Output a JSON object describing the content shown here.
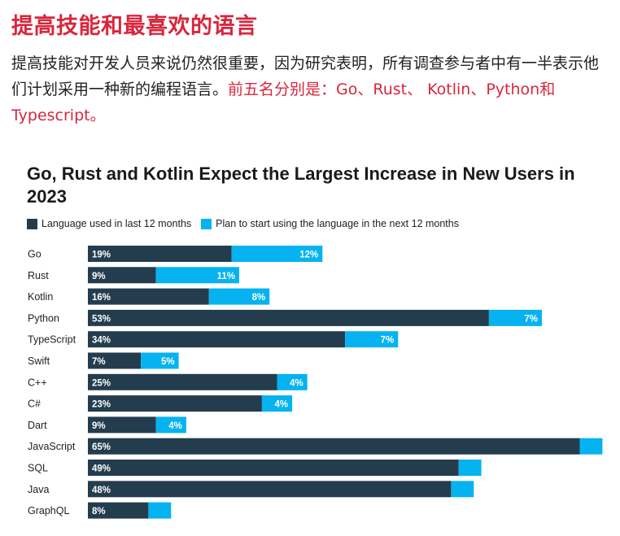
{
  "article": {
    "heading": "提高技能和最喜欢的语言",
    "paragraph_main": "提高技能对开发人员来说仍然很重要，因为研究表明，所有调查参与者中有一半表示他们计划采用一种新的编程语言。",
    "paragraph_highlight": "前五名分别是：Go、Rust、 Kotlin、Python和Typescript。"
  },
  "colors": {
    "used": "#243d4e",
    "plan": "#06b3f0",
    "heading": "#d9263d"
  },
  "chart_data": {
    "type": "bar",
    "stacked": true,
    "orientation": "horizontal",
    "title": "Go, Rust and Kotlin Expect the Largest Increase in New Users in 2023",
    "legend_position": "top-left",
    "grid": false,
    "categories": [
      "Go",
      "Rust",
      "Kotlin",
      "Python",
      "TypeScript",
      "Swift",
      "C++",
      "C#",
      "Dart",
      "JavaScript",
      "SQL",
      "Java",
      "GraphQL"
    ],
    "series": [
      {
        "name": "Language used in last 12 months",
        "values": [
          19,
          9,
          16,
          53,
          34,
          7,
          25,
          23,
          9,
          65,
          49,
          48,
          8
        ],
        "labels": [
          "19%",
          "9%",
          "16%",
          "53%",
          "34%",
          "7%",
          "25%",
          "23%",
          "9%",
          "65%",
          "49%",
          "48%",
          "8%"
        ]
      },
      {
        "name": "Plan to start using the language in the next 12 months",
        "values": [
          12,
          11,
          8,
          7,
          7,
          5,
          4,
          4,
          4,
          3,
          3,
          3,
          3
        ],
        "labels": [
          "12%",
          "11%",
          "8%",
          "7%",
          "7%",
          "5%",
          "4%",
          "4%",
          "4%",
          "",
          "",
          "",
          ""
        ]
      }
    ]
  }
}
